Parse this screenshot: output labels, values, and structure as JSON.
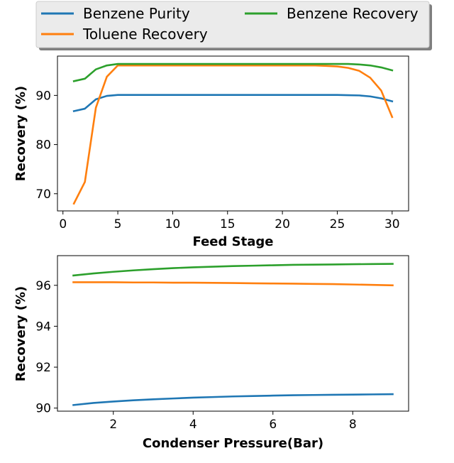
{
  "legend": {
    "entries": [
      {
        "label": "Benzene Purity",
        "color": "#1f77b4"
      },
      {
        "label": "Toluene Recovery",
        "color": "#ff7f0e"
      },
      {
        "label": "Benzene Recovery",
        "color": "#2ca02c"
      }
    ],
    "placement": "top-center, outside axes, 2 columns"
  },
  "chart_data": [
    {
      "type": "line",
      "xlabel": "Feed Stage",
      "ylabel": "Recovery (%)",
      "xlim": [
        -0.5,
        31.5
      ],
      "ylim": [
        66.5,
        98.0
      ],
      "xticks": [
        0,
        5,
        10,
        15,
        20,
        25,
        30
      ],
      "yticks": [
        70,
        80,
        90
      ],
      "grid": false,
      "x": [
        1,
        2,
        3,
        4,
        5,
        6,
        7,
        8,
        9,
        10,
        11,
        12,
        13,
        14,
        15,
        16,
        17,
        18,
        19,
        20,
        21,
        22,
        23,
        24,
        25,
        26,
        27,
        28,
        29,
        30
      ],
      "series": [
        {
          "name": "Benzene Purity",
          "color": "#1f77b4",
          "values": [
            86.8,
            87.3,
            89.2,
            89.9,
            90.1,
            90.1,
            90.1,
            90.1,
            90.1,
            90.1,
            90.1,
            90.1,
            90.1,
            90.1,
            90.1,
            90.1,
            90.1,
            90.1,
            90.1,
            90.1,
            90.1,
            90.1,
            90.1,
            90.1,
            90.1,
            90.05,
            90.0,
            89.8,
            89.4,
            88.8
          ]
        },
        {
          "name": "Toluene Recovery",
          "color": "#ff7f0e",
          "values": [
            68.0,
            72.4,
            87.5,
            93.8,
            96.1,
            96.1,
            96.1,
            96.1,
            96.1,
            96.1,
            96.1,
            96.1,
            96.1,
            96.1,
            96.1,
            96.1,
            96.1,
            96.1,
            96.1,
            96.1,
            96.1,
            96.1,
            96.1,
            96.0,
            95.9,
            95.6,
            95.0,
            93.6,
            91.0,
            85.6
          ]
        },
        {
          "name": "Benzene Recovery",
          "color": "#2ca02c",
          "values": [
            92.9,
            93.4,
            95.3,
            96.1,
            96.4,
            96.4,
            96.4,
            96.4,
            96.4,
            96.4,
            96.4,
            96.4,
            96.4,
            96.4,
            96.4,
            96.4,
            96.4,
            96.4,
            96.4,
            96.4,
            96.4,
            96.4,
            96.4,
            96.4,
            96.4,
            96.4,
            96.3,
            96.1,
            95.7,
            95.1
          ]
        }
      ]
    },
    {
      "type": "line",
      "xlabel": "Condenser Pressure(Bar)",
      "ylabel": "Recovery (%)",
      "xlim": [
        0.6,
        9.4
      ],
      "ylim": [
        89.85,
        97.45
      ],
      "xticks": [
        2,
        4,
        6,
        8
      ],
      "yticks": [
        90,
        92,
        94,
        96
      ],
      "grid": false,
      "x": [
        1,
        1.5,
        2,
        2.5,
        3,
        3.5,
        4,
        4.5,
        5,
        5.5,
        6,
        6.5,
        7,
        7.5,
        8,
        8.5,
        9
      ],
      "series": [
        {
          "name": "Benzene Purity",
          "color": "#1f77b4",
          "values": [
            90.15,
            90.25,
            90.32,
            90.38,
            90.43,
            90.47,
            90.51,
            90.54,
            90.57,
            90.59,
            90.61,
            90.63,
            90.64,
            90.65,
            90.66,
            90.67,
            90.68
          ]
        },
        {
          "name": "Toluene Recovery",
          "color": "#ff7f0e",
          "values": [
            96.15,
            96.15,
            96.15,
            96.14,
            96.14,
            96.13,
            96.13,
            96.12,
            96.11,
            96.1,
            96.09,
            96.08,
            96.07,
            96.06,
            96.04,
            96.02,
            96.0
          ]
        },
        {
          "name": "Benzene Recovery",
          "color": "#2ca02c",
          "values": [
            96.48,
            96.58,
            96.66,
            96.73,
            96.79,
            96.84,
            96.88,
            96.91,
            96.94,
            96.96,
            96.98,
            97.0,
            97.01,
            97.02,
            97.03,
            97.04,
            97.05
          ]
        }
      ]
    }
  ]
}
